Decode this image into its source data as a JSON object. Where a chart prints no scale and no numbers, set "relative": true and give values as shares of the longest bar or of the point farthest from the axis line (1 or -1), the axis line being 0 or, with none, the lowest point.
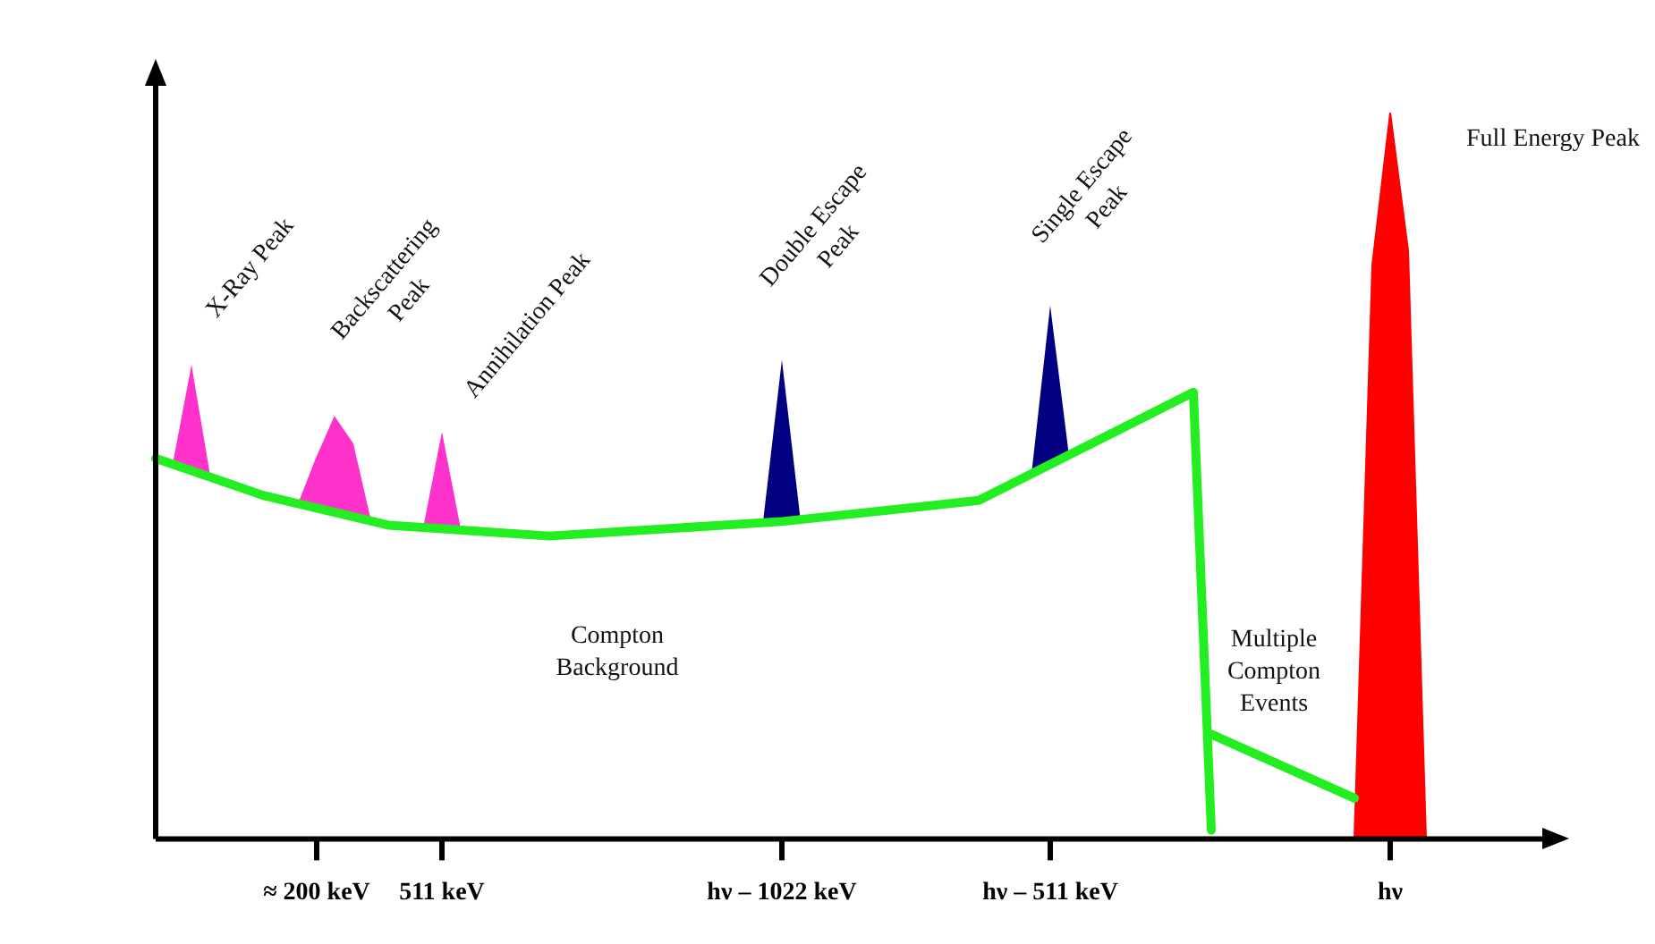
{
  "chart_data": {
    "type": "area",
    "relative": true,
    "legend": false,
    "grid": false,
    "categories": [
      null,
      null,
      null,
      null,
      null,
      null,
      null,
      null,
      null,
      "≈ 200 keV",
      null,
      null,
      null,
      null,
      null,
      null,
      "511 keV",
      null,
      null,
      null,
      null,
      null,
      null,
      null,
      null,
      null,
      null,
      null,
      null,
      null,
      null,
      null,
      null,
      null,
      null,
      "hν – 1022 keV",
      null,
      null,
      null,
      null,
      null,
      null,
      null,
      null,
      null,
      null,
      null,
      null,
      null,
      null,
      "hν – 511 keV",
      null,
      null,
      null,
      null,
      null,
      null,
      null,
      null,
      null,
      null,
      null,
      null,
      null,
      null,
      null,
      null,
      null,
      null,
      "hν",
      null,
      null,
      null,
      null,
      null,
      null,
      null,
      null,
      null
    ],
    "series": [
      {
        "type": "line",
        "color": "#22ee22",
        "values": [
          0.524,
          null,
          null,
          null,
          null,
          null,
          0.473,
          null,
          null,
          null,
          null,
          null,
          null,
          0.432,
          null,
          null,
          null,
          null,
          null,
          null,
          null,
          null,
          0.417,
          null,
          null,
          null,
          null,
          null,
          null,
          null,
          null,
          null,
          null,
          null,
          null,
          0.437,
          null,
          null,
          null,
          null,
          null,
          null,
          null,
          null,
          null,
          null,
          0.466,
          null,
          null,
          null,
          null,
          null,
          null,
          null,
          null,
          null,
          null,
          null,
          0.615,
          0.012,
          null,
          null,
          null,
          null,
          null,
          null,
          null,
          null,
          null,
          null,
          null,
          null,
          null,
          null,
          null,
          null,
          null,
          null,
          null
        ]
      },
      {
        "type": "line",
        "color": "#22ee22",
        "values": [
          null,
          null,
          null,
          null,
          null,
          null,
          null,
          null,
          null,
          null,
          null,
          null,
          null,
          null,
          null,
          null,
          null,
          null,
          null,
          null,
          null,
          null,
          null,
          null,
          null,
          null,
          null,
          null,
          null,
          null,
          null,
          null,
          null,
          null,
          null,
          null,
          null,
          null,
          null,
          null,
          null,
          null,
          null,
          null,
          null,
          null,
          null,
          null,
          null,
          null,
          null,
          null,
          null,
          null,
          null,
          null,
          null,
          null,
          null,
          0.144,
          null,
          null,
          null,
          null,
          null,
          null,
          null,
          0.056,
          null,
          null,
          null,
          null,
          null,
          null,
          null,
          null,
          null,
          null,
          null
        ]
      },
      {
        "type": "area",
        "color": "#ff0000",
        "values": [
          null,
          null,
          null,
          null,
          null,
          null,
          null,
          null,
          null,
          null,
          null,
          null,
          null,
          null,
          null,
          null,
          null,
          null,
          null,
          null,
          null,
          null,
          null,
          null,
          null,
          null,
          null,
          null,
          null,
          null,
          null,
          null,
          null,
          null,
          null,
          null,
          null,
          null,
          null,
          null,
          null,
          null,
          null,
          null,
          null,
          null,
          null,
          null,
          null,
          null,
          null,
          null,
          null,
          null,
          null,
          null,
          null,
          null,
          null,
          null,
          null,
          null,
          null,
          null,
          null,
          null,
          null,
          0,
          0.79,
          1,
          0.81,
          0,
          null,
          null,
          null,
          null,
          null,
          null,
          null
        ]
      },
      {
        "type": "area",
        "color": "#ff33cc",
        "values": [
          null,
          0.516,
          0.646,
          0.5,
          null,
          null,
          null,
          null,
          0.461,
          0.524,
          0.58,
          0.544,
          0.437,
          null,
          null,
          0.428,
          0.554,
          0.427,
          null,
          null,
          null,
          null,
          null,
          null,
          null,
          null,
          null,
          null,
          null,
          null,
          null,
          null,
          null,
          null,
          null,
          null,
          null,
          null,
          null,
          null,
          null,
          null,
          null,
          null,
          null,
          null,
          null,
          null,
          null,
          null,
          null,
          null,
          null,
          null,
          null,
          null,
          null,
          null,
          null,
          null,
          null,
          null,
          null,
          null,
          null,
          null,
          null,
          null,
          null,
          null,
          null,
          null,
          null,
          null,
          null,
          null,
          null,
          null,
          null
        ]
      },
      {
        "type": "area",
        "color": "#000080",
        "values": [
          null,
          null,
          null,
          null,
          null,
          null,
          null,
          null,
          null,
          null,
          null,
          null,
          null,
          null,
          null,
          null,
          null,
          null,
          null,
          null,
          null,
          null,
          null,
          null,
          null,
          null,
          null,
          null,
          null,
          null,
          null,
          null,
          null,
          null,
          0.437,
          0.649,
          0.437,
          null,
          null,
          null,
          null,
          null,
          null,
          null,
          null,
          null,
          null,
          null,
          null,
          0.502,
          0.724,
          0.527,
          null,
          null,
          null,
          null,
          null,
          null,
          null,
          null,
          null,
          null,
          null,
          null,
          null,
          null,
          null,
          null,
          null,
          null,
          null,
          null,
          null,
          null,
          null,
          null,
          null,
          null,
          null
        ]
      }
    ],
    "annotations": [
      "X-Ray Peak",
      "Backscattering Peak",
      "Annihilation Peak",
      "Double Escape Peak",
      "Single Escape Peak",
      "Compton Background",
      "Multiple Compton Events",
      "Full Energy Peak"
    ]
  }
}
